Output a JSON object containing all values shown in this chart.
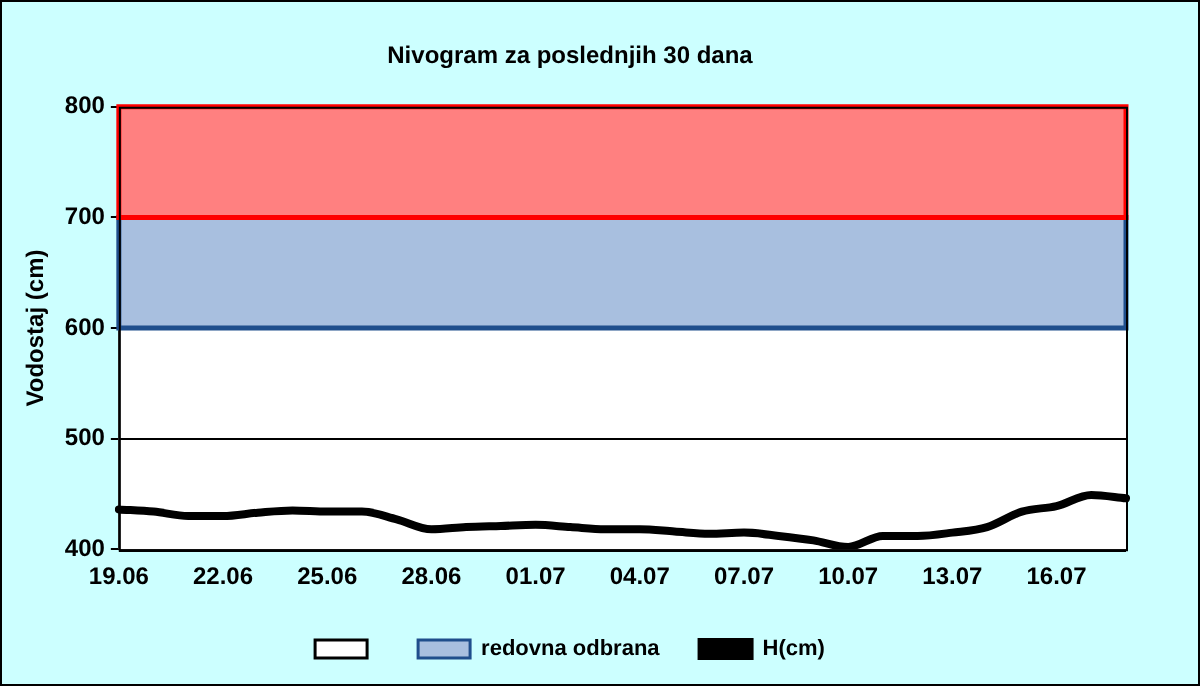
{
  "chart_data": {
    "type": "line",
    "title": "Nivogram za poslednjih 30 dana",
    "ylabel": "Vodostaj (cm)",
    "categories": [
      "19.06",
      null,
      null,
      "22.06",
      null,
      null,
      "25.06",
      null,
      null,
      "28.06",
      null,
      null,
      "01.07",
      null,
      null,
      "04.07",
      null,
      null,
      "07.07",
      null,
      null,
      "10.07",
      null,
      null,
      "13.07",
      null,
      null,
      "16.07",
      null,
      null
    ],
    "series": [
      {
        "name": "H(cm)",
        "color": "#000000",
        "values": [
          436,
          434,
          430,
          430,
          433,
          435,
          434,
          434,
          427,
          418,
          420,
          421,
          422,
          420,
          418,
          418,
          416,
          414,
          415,
          412,
          408,
          402,
          412,
          412,
          415,
          420,
          434,
          439,
          449,
          446
        ]
      }
    ],
    "bands": [
      {
        "axis": "y",
        "from": 400,
        "to": 600,
        "color": "#ffffff"
      },
      {
        "axis": "y",
        "from": 600,
        "to": 700,
        "label": "redovna odbrana",
        "color": "#a8bfdf"
      },
      {
        "axis": "y",
        "from": 700,
        "to": 800,
        "color": "#ff8080"
      }
    ],
    "ylim": [
      400,
      800
    ],
    "yticks": [
      400,
      500,
      600,
      700,
      800
    ],
    "grid": "y",
    "legend": "bottom",
    "marker": "none",
    "line_style": "solid"
  }
}
